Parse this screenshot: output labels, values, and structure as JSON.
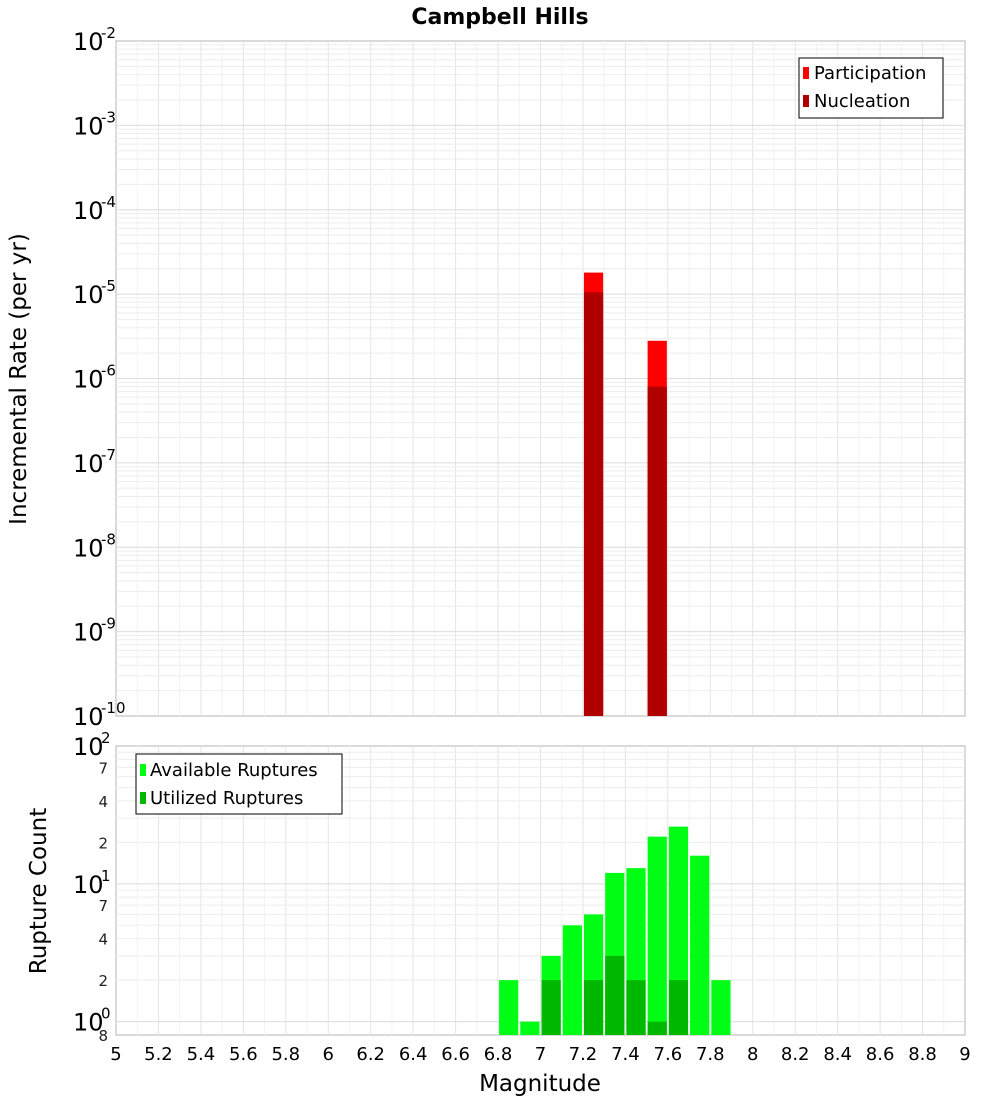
{
  "chart_data": [
    {
      "type": "bar",
      "title": "Campbell Hills",
      "ylabel": "Incremental Rate (per yr)",
      "yscale": "log",
      "ylim": [
        1e-10,
        0.01
      ],
      "xlim": [
        5,
        9
      ],
      "y_ticks": [
        {
          "base": "10",
          "exp": "-10",
          "value": 1e-10
        },
        {
          "base": "10",
          "exp": "-9",
          "value": 1e-09
        },
        {
          "base": "10",
          "exp": "-8",
          "value": 1e-08
        },
        {
          "base": "10",
          "exp": "-7",
          "value": 1e-07
        },
        {
          "base": "10",
          "exp": "-6",
          "value": 1e-06
        },
        {
          "base": "10",
          "exp": "-5",
          "value": 1e-05
        },
        {
          "base": "10",
          "exp": "-4",
          "value": 0.0001
        },
        {
          "base": "10",
          "exp": "-3",
          "value": 0.001
        },
        {
          "base": "10",
          "exp": "-2",
          "value": 0.01
        }
      ],
      "bin_width": 0.1,
      "legend_position": "top-right",
      "series": [
        {
          "name": "Participation",
          "color": "#ff0000",
          "x": [
            7.25,
            7.55
          ],
          "values": [
            1.8e-05,
            2.8e-06
          ]
        },
        {
          "name": "Nucleation",
          "color": "#b00000",
          "x": [
            7.25,
            7.55
          ],
          "values": [
            1.05e-05,
            8e-07
          ]
        }
      ]
    },
    {
      "type": "bar",
      "xlabel": "Magnitude",
      "ylabel": "Rupture Count",
      "yscale": "log",
      "ylim": [
        0.8,
        100
      ],
      "xlim": [
        5,
        9
      ],
      "x_ticks": [
        "5",
        "5.2",
        "5.4",
        "5.6",
        "5.8",
        "6",
        "6.2",
        "6.4",
        "6.6",
        "6.8",
        "7",
        "7.2",
        "7.4",
        "7.6",
        "7.8",
        "8",
        "8.2",
        "8.4",
        "8.6",
        "8.8",
        "9"
      ],
      "y_major_ticks": [
        {
          "base": "10",
          "exp": "0",
          "value": 1
        },
        {
          "base": "10",
          "exp": "1",
          "value": 10
        },
        {
          "base": "10",
          "exp": "2",
          "value": 100
        }
      ],
      "y_minor_ticks": [
        {
          "label": "8",
          "value": 0.8
        },
        {
          "label": "2",
          "value": 2
        },
        {
          "label": "4",
          "value": 4
        },
        {
          "label": "7",
          "value": 7
        },
        {
          "label": "2",
          "value": 20
        },
        {
          "label": "4",
          "value": 40
        },
        {
          "label": "7",
          "value": 70
        }
      ],
      "bin_width": 0.1,
      "legend_position": "top-left",
      "series": [
        {
          "name": "Available Ruptures",
          "color": "#00ff14",
          "x": [
            6.85,
            6.95,
            7.05,
            7.15,
            7.25,
            7.35,
            7.45,
            7.55,
            7.65,
            7.75,
            7.85
          ],
          "values": [
            2,
            1,
            3,
            5,
            6,
            12,
            13,
            22,
            26,
            16,
            2
          ]
        },
        {
          "name": "Utilized Ruptures",
          "color": "#00b800",
          "x": [
            7.05,
            7.25,
            7.35,
            7.45,
            7.55,
            7.65
          ],
          "values": [
            2,
            2,
            3,
            2,
            1,
            2
          ]
        }
      ]
    }
  ]
}
